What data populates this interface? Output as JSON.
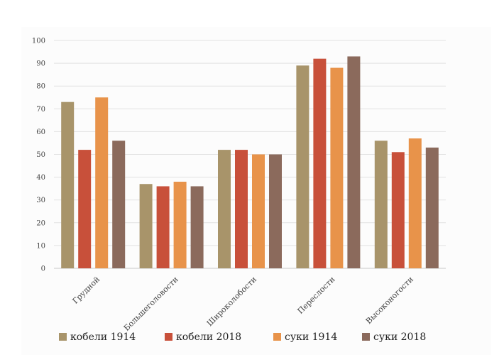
{
  "chart_data": {
    "type": "bar",
    "title": "",
    "xlabel": "",
    "ylabel": "",
    "ylim": [
      0,
      100
    ],
    "yticks": [
      0,
      10,
      20,
      30,
      40,
      50,
      60,
      70,
      80,
      90,
      100
    ],
    "grid": true,
    "legend_position": "bottom",
    "categories": [
      "Грудной",
      "Большеголовости",
      "Широколобости",
      "Переслости",
      "Высоконогости"
    ],
    "series": [
      {
        "name": "кобели 1914",
        "color": "#a8946a",
        "values": [
          73,
          37,
          52,
          89,
          56
        ]
      },
      {
        "name": "кобели 2018",
        "color": "#c8503a",
        "values": [
          52,
          36,
          52,
          92,
          51
        ]
      },
      {
        "name": "суки 1914",
        "color": "#e8934a",
        "values": [
          75,
          38,
          50,
          88,
          57
        ]
      },
      {
        "name": "суки 2018",
        "color": "#8b6a5c",
        "values": [
          56,
          36,
          50,
          93,
          53
        ]
      }
    ]
  }
}
